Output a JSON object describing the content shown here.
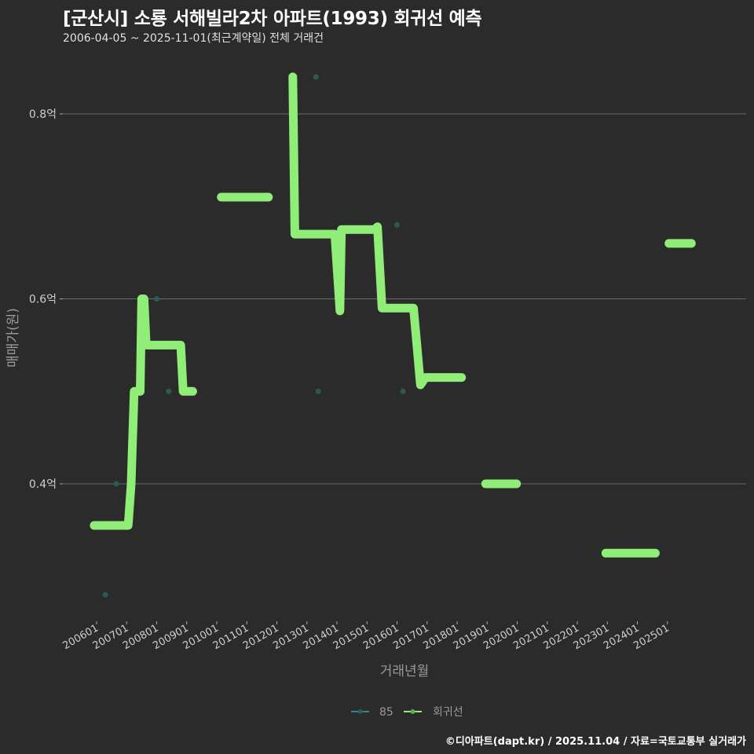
{
  "header": {
    "title": "[군산시] 소룡 서해빌라2차 아파트(1993) 회귀선 예측",
    "subtitle": "2006-04-05 ~ 2025-11-01(최근계약일) 전체 거래건"
  },
  "footer": {
    "credit": "©디아파트(dapt.kr) / 2025.11.04 / 자료=국토교통부 실거래가"
  },
  "legend": {
    "items": [
      {
        "label": "85",
        "color": "#2e8b8b"
      },
      {
        "label": "회귀선",
        "color": "#90ee78"
      }
    ]
  },
  "colors": {
    "background": "#2b2b2c",
    "gridline": "#6a6a6a",
    "regression": "#90ee78",
    "scatter": "#2a5f5a"
  },
  "chart_data": {
    "type": "line",
    "title": "[군산시] 소룡 서해빌라2차 아파트(1993) 회귀선 예측",
    "subtitle": "2006-04-05 ~ 2025-11-01(최근계약일) 전체 거래건",
    "xlabel": "거래년월",
    "ylabel": "매매가(원)",
    "x_ticks": [
      "200601",
      "200701",
      "200801",
      "200901",
      "201001",
      "201101",
      "201201",
      "201301",
      "201401",
      "201501",
      "201601",
      "201701",
      "201801",
      "201901",
      "202001",
      "202101",
      "202201",
      "202301",
      "202401",
      "202501"
    ],
    "y_ticks": [
      {
        "value": 0.4,
        "label": "0.4억"
      },
      {
        "value": 0.6,
        "label": "0.6억"
      },
      {
        "value": 0.8,
        "label": "0.8억"
      }
    ],
    "ylim": [
      0.26,
      0.86
    ],
    "xlim": [
      2005.6,
      2026.3
    ],
    "grid": {
      "horizontal": true,
      "vertical": false
    },
    "legend_position": "bottom",
    "series": [
      {
        "name": "85",
        "kind": "scatter",
        "points": [
          {
            "x": 2006.29,
            "y": 0.28
          },
          {
            "x": 2006.65,
            "y": 0.4
          },
          {
            "x": 2008.0,
            "y": 0.6
          },
          {
            "x": 2008.4,
            "y": 0.5
          },
          {
            "x": 2013.3,
            "y": 0.84
          },
          {
            "x": 2013.38,
            "y": 0.5
          },
          {
            "x": 2016.0,
            "y": 0.68
          },
          {
            "x": 2016.2,
            "y": 0.5
          }
        ]
      },
      {
        "name": "회귀선",
        "kind": "line",
        "segments": [
          [
            {
              "x": 2005.92,
              "y": 0.355
            },
            {
              "x": 2007.05,
              "y": 0.355
            },
            {
              "x": 2007.15,
              "y": 0.4
            },
            {
              "x": 2007.25,
              "y": 0.5
            },
            {
              "x": 2007.45,
              "y": 0.5
            },
            {
              "x": 2007.5,
              "y": 0.6
            },
            {
              "x": 2007.58,
              "y": 0.6
            },
            {
              "x": 2007.65,
              "y": 0.55
            },
            {
              "x": 2008.8,
              "y": 0.55
            },
            {
              "x": 2008.88,
              "y": 0.5
            },
            {
              "x": 2009.2,
              "y": 0.5
            }
          ],
          [
            {
              "x": 2010.15,
              "y": 0.71
            },
            {
              "x": 2011.72,
              "y": 0.71
            }
          ],
          [
            {
              "x": 2012.53,
              "y": 0.84
            },
            {
              "x": 2012.6,
              "y": 0.67
            },
            {
              "x": 2013.93,
              "y": 0.67
            },
            {
              "x": 2014.1,
              "y": 0.587
            },
            {
              "x": 2014.15,
              "y": 0.675
            },
            {
              "x": 2015.25,
              "y": 0.675
            },
            {
              "x": 2015.35,
              "y": 0.678
            },
            {
              "x": 2015.5,
              "y": 0.59
            },
            {
              "x": 2016.55,
              "y": 0.59
            },
            {
              "x": 2016.62,
              "y": 0.565
            },
            {
              "x": 2016.78,
              "y": 0.507
            },
            {
              "x": 2016.95,
              "y": 0.515
            },
            {
              "x": 2018.15,
              "y": 0.515
            }
          ],
          [
            {
              "x": 2018.95,
              "y": 0.4
            },
            {
              "x": 2019.98,
              "y": 0.4
            }
          ],
          [
            {
              "x": 2022.95,
              "y": 0.325
            },
            {
              "x": 2024.6,
              "y": 0.325
            }
          ],
          [
            {
              "x": 2025.05,
              "y": 0.66
            },
            {
              "x": 2025.8,
              "y": 0.66
            }
          ]
        ]
      }
    ]
  }
}
